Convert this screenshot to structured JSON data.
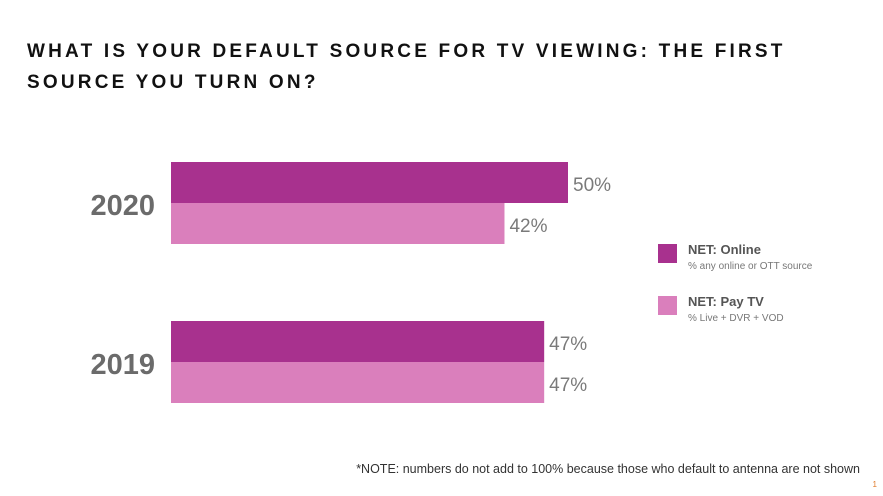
{
  "title": "WHAT IS YOUR DEFAULT SOURCE FOR TV VIEWING: THE FIRST SOURCE YOU TURN ON?",
  "note": "*NOTE:  numbers do not add to 100% because those who default to antenna are not shown",
  "page_number": "1",
  "legend": [
    {
      "name": "NET: Online",
      "sub": "% any online or OTT source",
      "color": "#a8318e"
    },
    {
      "name": "NET: Pay TV",
      "sub": "% Live + DVR + VOD",
      "color": "#da7fbc"
    }
  ],
  "chart_data": {
    "type": "bar",
    "orientation": "horizontal",
    "categories": [
      "2020",
      "2019"
    ],
    "series": [
      {
        "name": "NET: Online",
        "values": [
          50,
          47
        ],
        "labels": [
          "50%",
          "47%"
        ],
        "color": "#a8318e"
      },
      {
        "name": "NET: Pay TV",
        "values": [
          42,
          47
        ],
        "labels": [
          "42%",
          "47%"
        ],
        "color": "#da7fbc"
      }
    ],
    "xlim": [
      0,
      100
    ],
    "grid": false,
    "legend_position": "right"
  }
}
